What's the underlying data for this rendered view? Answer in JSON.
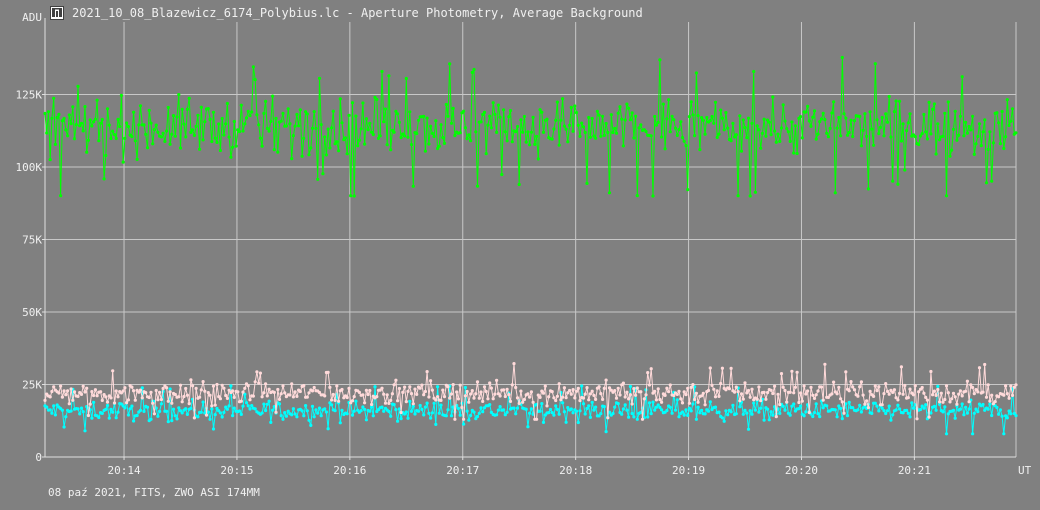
{
  "window": {
    "title": "2021_10_08_Blazewicz_6174_Polybius.lc - Aperture Photometry, Average Background",
    "footer": "08 paź 2021, FITS, ZWO ASI 174MM"
  },
  "chart_data": {
    "type": "line",
    "title": "Aperture Photometry, Average Background",
    "ylabel": "ADU",
    "xlabel": "UT",
    "ylim": [
      0,
      150000
    ],
    "xlim_minutes": [
      13.3,
      21.9
    ],
    "y_ticks": [
      {
        "value": 0,
        "label": "0"
      },
      {
        "value": 25000,
        "label": "25K"
      },
      {
        "value": 50000,
        "label": "50K"
      },
      {
        "value": 75000,
        "label": "75K"
      },
      {
        "value": 100000,
        "label": "100K"
      },
      {
        "value": 125000,
        "label": "125K"
      }
    ],
    "x_ticks": [
      {
        "value": 14,
        "label": "20:14"
      },
      {
        "value": 15,
        "label": "20:15"
      },
      {
        "value": 16,
        "label": "20:16"
      },
      {
        "value": 17,
        "label": "20:17"
      },
      {
        "value": 18,
        "label": "20:18"
      },
      {
        "value": 19,
        "label": "20:19"
      },
      {
        "value": 20,
        "label": "20:20"
      },
      {
        "value": 21,
        "label": "20:21"
      }
    ],
    "grid": true,
    "time_start": "20:13:18",
    "time_end": "20:21:54",
    "series": [
      {
        "color": "#00ff00",
        "mean": 114000,
        "min": 90000,
        "max": 143000
      },
      {
        "color": "#ffdada",
        "mean": 22000,
        "min": 13000,
        "max": 35000
      },
      {
        "color": "#00ffff",
        "mean": 16000,
        "min": 8000,
        "max": 26000
      }
    ]
  },
  "colors": {
    "background": "#808080",
    "grid": "#c8c8c8",
    "axis": "#e0e0e0",
    "text": "#f0f0f0"
  }
}
